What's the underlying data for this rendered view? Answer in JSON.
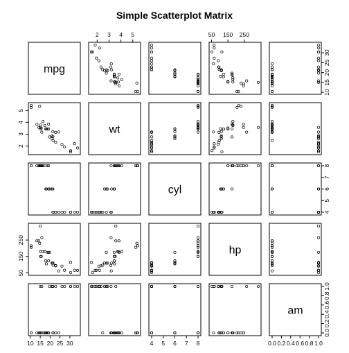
{
  "chart_data": {
    "type": "scatter",
    "title": "Simple Scatterplot Matrix",
    "variables": [
      "mpg",
      "wt",
      "cyl",
      "hp",
      "am"
    ],
    "axis": {
      "mpg": {
        "range": [
          10.4,
          33.9
        ],
        "ticks": [
          10,
          15,
          20,
          25,
          30
        ]
      },
      "wt": {
        "range": [
          1.513,
          5.424
        ],
        "ticks": [
          2,
          3,
          4,
          5
        ]
      },
      "cyl": {
        "range": [
          4,
          8
        ],
        "ticks": [
          4,
          5,
          6,
          7,
          8
        ]
      },
      "hp": {
        "range": [
          52,
          335
        ],
        "ticks": [
          50,
          100,
          150,
          200,
          250,
          300
        ]
      },
      "am": {
        "range": [
          0,
          1
        ],
        "ticks": [
          0.0,
          0.2,
          0.4,
          0.6,
          0.8,
          1.0
        ]
      }
    },
    "tick_labels": {
      "top": {
        "col1": [
          "2",
          "3",
          "4",
          "5"
        ],
        "col3": [
          "50",
          "150",
          "250"
        ]
      },
      "bottom": {
        "col0": [
          "10",
          "15",
          "20",
          "25",
          "30"
        ],
        "col2": [
          "4",
          "5",
          "6",
          "7",
          "8"
        ],
        "col4": [
          "0.0",
          "0.2",
          "0.4",
          "0.6",
          "0.8",
          "1.0"
        ]
      },
      "left": {
        "row1": [
          "2",
          "3",
          "4",
          "5"
        ],
        "row3": [
          "50",
          "150",
          "250"
        ]
      },
      "right": {
        "row0": [
          "10",
          "15",
          "20",
          "25",
          "30"
        ],
        "row2": [
          "4",
          "5",
          "6",
          "7",
          "8"
        ],
        "row4": [
          "0.0",
          "0.2",
          "0.4",
          "0.6",
          "0.8",
          "1.0"
        ]
      }
    },
    "observations": {
      "mpg": [
        21.0,
        21.0,
        22.8,
        21.4,
        18.7,
        18.1,
        14.3,
        24.4,
        22.8,
        19.2,
        17.8,
        16.4,
        17.3,
        15.2,
        10.4,
        10.4,
        14.7,
        32.4,
        30.4,
        33.9,
        21.5,
        15.5,
        15.2,
        13.3,
        19.2,
        27.3,
        26.0,
        30.4,
        15.8,
        19.7,
        15.0,
        21.4
      ],
      "wt": [
        2.62,
        2.875,
        2.32,
        3.215,
        3.44,
        3.46,
        3.57,
        3.19,
        3.15,
        3.44,
        3.44,
        4.07,
        3.73,
        3.78,
        5.25,
        5.424,
        5.345,
        2.2,
        1.615,
        1.835,
        2.465,
        3.52,
        3.435,
        3.84,
        3.845,
        1.935,
        2.14,
        1.513,
        3.17,
        2.77,
        3.57,
        2.78
      ],
      "cyl": [
        6,
        6,
        4,
        6,
        8,
        6,
        8,
        4,
        4,
        6,
        6,
        8,
        8,
        8,
        8,
        8,
        8,
        4,
        4,
        4,
        4,
        8,
        8,
        8,
        8,
        4,
        4,
        4,
        8,
        6,
        8,
        4
      ],
      "hp": [
        110,
        110,
        93,
        110,
        175,
        105,
        245,
        62,
        95,
        123,
        123,
        180,
        180,
        180,
        205,
        215,
        230,
        66,
        52,
        65,
        97,
        150,
        150,
        245,
        175,
        66,
        91,
        113,
        264,
        175,
        335,
        109
      ],
      "am": [
        1,
        1,
        1,
        0,
        0,
        0,
        0,
        0,
        0,
        0,
        0,
        0,
        0,
        0,
        0,
        0,
        0,
        1,
        1,
        1,
        0,
        0,
        0,
        0,
        0,
        1,
        1,
        1,
        1,
        1,
        1,
        1
      ]
    },
    "grid": false,
    "legend": "none"
  }
}
